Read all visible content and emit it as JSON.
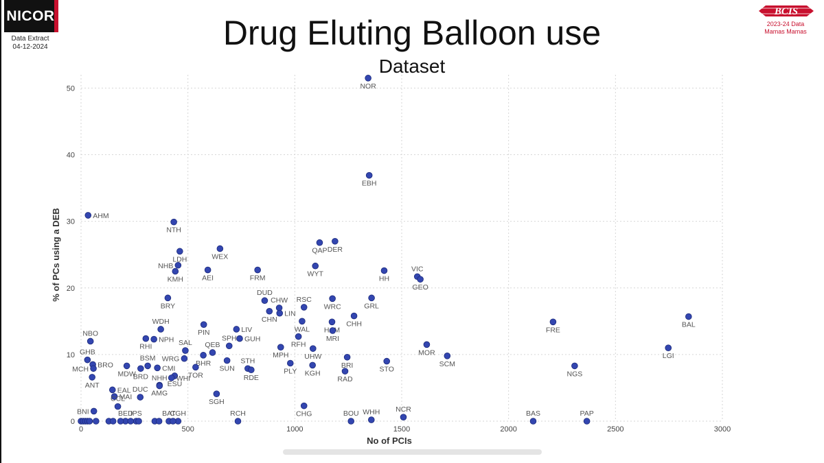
{
  "header": {
    "logo_text": "NICOR",
    "extract_line1": "Data Extract",
    "extract_line2": "04-12-2024",
    "title": "Drug Eluting Balloon use",
    "subtitle": "Dataset",
    "bcis_logo_text": "BCIS",
    "bcis_line1": "2023-24 Data",
    "bcis_line2": "Mamas Mamas"
  },
  "colors": {
    "point": "#3346b0",
    "point_stroke": "#1c2a7a",
    "grid": "#d6d6d6",
    "label": "#555555",
    "brand_red": "#c8102e"
  },
  "chart_data": {
    "type": "scatter",
    "title": "Drug Eluting Balloon use",
    "subtitle": "Dataset",
    "xlabel": "No of PCIs",
    "ylabel": "% of PCs using a DEB",
    "xlim": [
      0,
      3000
    ],
    "ylim": [
      0,
      52
    ],
    "xticks": [
      0,
      500,
      1000,
      1500,
      2000,
      2500,
      3000
    ],
    "yticks": [
      0,
      10,
      20,
      30,
      40,
      50
    ],
    "grid": true,
    "points": [
      {
        "label": "NOR",
        "x": 1343,
        "y": 51.5
      },
      {
        "label": "EBH",
        "x": 1348,
        "y": 36.9
      },
      {
        "label": "AHM",
        "x": 33,
        "y": 30.9
      },
      {
        "label": "NTH",
        "x": 434,
        "y": 29.9
      },
      {
        "label": "DER",
        "x": 1188,
        "y": 27.0
      },
      {
        "label": "QAP",
        "x": 1116,
        "y": 26.8
      },
      {
        "label": "WEX",
        "x": 650,
        "y": 25.9
      },
      {
        "label": "LDH",
        "x": 462,
        "y": 25.5
      },
      {
        "label": "NHB",
        "x": 454,
        "y": 23.4
      },
      {
        "label": "WYT",
        "x": 1096,
        "y": 23.3
      },
      {
        "label": "AEI",
        "x": 593,
        "y": 22.7
      },
      {
        "label": "FRM",
        "x": 826,
        "y": 22.7
      },
      {
        "label": "KMH",
        "x": 441,
        "y": 22.5
      },
      {
        "label": "HH",
        "x": 1418,
        "y": 22.6
      },
      {
        "label": "VIC",
        "x": 1573,
        "y": 21.7
      },
      {
        "label": "GEO",
        "x": 1587,
        "y": 21.3
      },
      {
        "label": "BRY",
        "x": 406,
        "y": 18.5
      },
      {
        "label": "WRC",
        "x": 1176,
        "y": 18.4
      },
      {
        "label": "GRL",
        "x": 1359,
        "y": 18.5
      },
      {
        "label": "DUD",
        "x": 859,
        "y": 18.1
      },
      {
        "label": "CHW",
        "x": 927,
        "y": 17.0
      },
      {
        "label": "RSC",
        "x": 1043,
        "y": 17.1
      },
      {
        "label": "CHN",
        "x": 881,
        "y": 16.5
      },
      {
        "label": "LIN",
        "x": 929,
        "y": 16.2
      },
      {
        "label": "CHH",
        "x": 1277,
        "y": 15.8
      },
      {
        "label": "BAL",
        "x": 2842,
        "y": 15.7
      },
      {
        "label": "WAL",
        "x": 1034,
        "y": 15.0
      },
      {
        "label": "HAM",
        "x": 1174,
        "y": 14.9
      },
      {
        "label": "FRE",
        "x": 2208,
        "y": 14.9
      },
      {
        "label": "PIN",
        "x": 574,
        "y": 14.5
      },
      {
        "label": "WDH",
        "x": 373,
        "y": 13.8
      },
      {
        "label": "LIV",
        "x": 727,
        "y": 13.8
      },
      {
        "label": "MRI",
        "x": 1177,
        "y": 13.6
      },
      {
        "label": "RFH",
        "x": 1017,
        "y": 12.7
      },
      {
        "label": "RHI",
        "x": 303,
        "y": 12.4
      },
      {
        "label": "NPH",
        "x": 341,
        "y": 12.3
      },
      {
        "label": "GUH",
        "x": 742,
        "y": 12.4
      },
      {
        "label": "NBO",
        "x": 44,
        "y": 12.0
      },
      {
        "label": "MOR",
        "x": 1617,
        "y": 11.5
      },
      {
        "label": "SPH",
        "x": 693,
        "y": 11.3
      },
      {
        "label": "MPH",
        "x": 934,
        "y": 11.1
      },
      {
        "label": "UHW",
        "x": 1085,
        "y": 10.9
      },
      {
        "label": "LGI",
        "x": 2747,
        "y": 11.0
      },
      {
        "label": "SAL",
        "x": 488,
        "y": 10.6
      },
      {
        "label": "QEB",
        "x": 615,
        "y": 10.3
      },
      {
        "label": "SCM",
        "x": 1713,
        "y": 9.8
      },
      {
        "label": "BHR",
        "x": 572,
        "y": 9.9
      },
      {
        "label": "WRG",
        "x": 483,
        "y": 9.4
      },
      {
        "label": "SUN",
        "x": 683,
        "y": 9.1
      },
      {
        "label": "BRI",
        "x": 1245,
        "y": 9.6
      },
      {
        "label": "STO",
        "x": 1430,
        "y": 9.0
      },
      {
        "label": "GHB",
        "x": 30,
        "y": 9.2
      },
      {
        "label": "PLY",
        "x": 979,
        "y": 8.7
      },
      {
        "label": "KGH",
        "x": 1083,
        "y": 8.4
      },
      {
        "label": "NGS",
        "x": 2309,
        "y": 8.3
      },
      {
        "label": "BSM",
        "x": 312,
        "y": 8.3
      },
      {
        "label": "MDW",
        "x": 214,
        "y": 8.3
      },
      {
        "label": "TOR",
        "x": 536,
        "y": 8.1
      },
      {
        "label": "STH",
        "x": 780,
        "y": 7.9
      },
      {
        "label": "CMI",
        "x": 357,
        "y": 8.0
      },
      {
        "label": "BRD",
        "x": 279,
        "y": 7.9
      },
      {
        "label": "RDE",
        "x": 796,
        "y": 7.7
      },
      {
        "label": "RAD",
        "x": 1235,
        "y": 7.5
      },
      {
        "label": "BRO",
        "x": 55,
        "y": 8.5
      },
      {
        "label": "MCH",
        "x": 58,
        "y": 7.9
      },
      {
        "label": "ESU",
        "x": 438,
        "y": 6.8
      },
      {
        "label": "WHI",
        "x": 423,
        "y": 6.5
      },
      {
        "label": "ANT",
        "x": 52,
        "y": 6.6
      },
      {
        "label": "AMG",
        "x": 367,
        "y": 5.4
      },
      {
        "label": "EAL",
        "x": 147,
        "y": 4.7
      },
      {
        "label": "NHH",
        "x": 367,
        "y": 5.3
      },
      {
        "label": "SGH",
        "x": 634,
        "y": 4.1
      },
      {
        "label": "MAI",
        "x": 156,
        "y": 3.7
      },
      {
        "label": "DUC",
        "x": 277,
        "y": 3.6
      },
      {
        "label": "CHG",
        "x": 1043,
        "y": 2.3
      },
      {
        "label": "CCL",
        "x": 172,
        "y": 2.2
      },
      {
        "label": "BNI",
        "x": 60,
        "y": 1.5
      },
      {
        "label": "NCR",
        "x": 1508,
        "y": 0.6
      },
      {
        "label": "WHH",
        "x": 1358,
        "y": 0.2
      },
      {
        "label": "BED",
        "x": 208,
        "y": 0.0
      },
      {
        "label": "IPS",
        "x": 258,
        "y": 0.0
      },
      {
        "label": "BAT",
        "x": 411,
        "y": 0.0
      },
      {
        "label": "CGH",
        "x": 454,
        "y": 0.0
      },
      {
        "label": "RCH",
        "x": 734,
        "y": 0.0
      },
      {
        "label": "BOU",
        "x": 1263,
        "y": 0.0
      },
      {
        "label": "BAS",
        "x": 2115,
        "y": 0.0
      },
      {
        "label": "PAP",
        "x": 2366,
        "y": 0.0
      },
      {
        "label": "",
        "x": 0,
        "y": 0.0
      },
      {
        "label": "",
        "x": 10,
        "y": 0.0
      },
      {
        "label": "",
        "x": 20,
        "y": 0.0
      },
      {
        "label": "",
        "x": 30,
        "y": 0.0
      },
      {
        "label": "",
        "x": 40,
        "y": 0.0
      },
      {
        "label": "",
        "x": 70,
        "y": 0.0
      },
      {
        "label": "",
        "x": 130,
        "y": 0.0
      },
      {
        "label": "",
        "x": 150,
        "y": 0.0
      },
      {
        "label": "",
        "x": 185,
        "y": 0.0
      },
      {
        "label": "",
        "x": 232,
        "y": 0.0
      },
      {
        "label": "",
        "x": 270,
        "y": 0.0
      },
      {
        "label": "",
        "x": 345,
        "y": 0.0
      },
      {
        "label": "",
        "x": 365,
        "y": 0.0
      },
      {
        "label": "",
        "x": 430,
        "y": 0.0
      }
    ]
  }
}
